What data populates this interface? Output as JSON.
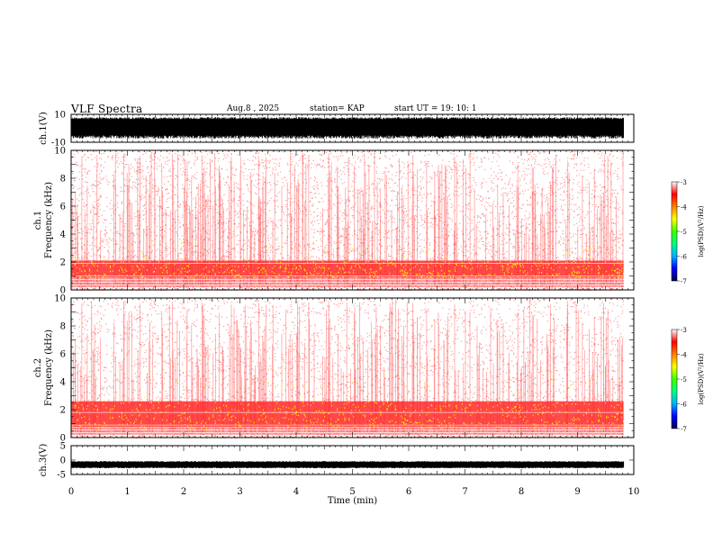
{
  "header": {
    "title": "VLF Spectra",
    "date": "Aug.8  , 2025",
    "station": "station= KAP",
    "start": "start  UT  =   19: 10: 1"
  },
  "colors": {
    "axis": "#000000",
    "spec_low": "#ffffff",
    "spec_mid": "#ff2a2a",
    "spec_high": "#ffff00",
    "colorbar": [
      "#000050",
      "#0000ff",
      "#00b0ff",
      "#00ff80",
      "#40ff00",
      "#ffff00",
      "#ff8000",
      "#ff0000",
      "#ffffff"
    ]
  },
  "chart_data": [
    {
      "id": "ch1-waveform",
      "type": "line",
      "ylabel": "ch.1(V)",
      "ylim": [
        -10,
        10
      ],
      "yticks": [
        "10",
        "-10"
      ],
      "xlim": [
        0,
        10
      ],
      "description_values": "saturated dense oscillation filling roughly -7 to 8 V"
    },
    {
      "id": "ch1-spectrogram",
      "type": "heatmap",
      "ylabel": "ch.1\nFrequency  (kHz)",
      "ylim": [
        0,
        10
      ],
      "yticks": [
        "0",
        "2",
        "4",
        "6",
        "8",
        "10"
      ],
      "xlim": [
        0,
        10
      ],
      "bright_band_khz": [
        0.9,
        2.1
      ],
      "colorbar": {
        "label": "log(PSD)(V²/Hz)",
        "range": [
          -7,
          -3
        ],
        "ticks": [
          "-3",
          "-4",
          "-5",
          "-6",
          "-7"
        ]
      }
    },
    {
      "id": "ch2-spectrogram",
      "type": "heatmap",
      "ylabel": "ch.2\nFrequency  (kHz)",
      "ylim": [
        0,
        10
      ],
      "yticks": [
        "0",
        "2",
        "4",
        "6",
        "8",
        "10"
      ],
      "xlim": [
        0,
        10
      ],
      "bright_band_khz": [
        0.7,
        2.6
      ],
      "colorbar": {
        "label": "log(PSD)(V²/Hz)",
        "range": [
          -7,
          -3
        ],
        "ticks": [
          "-3",
          "-4",
          "-5",
          "-6",
          "-7"
        ]
      }
    },
    {
      "id": "ch3-waveform",
      "type": "line",
      "ylabel": "ch.3(V)",
      "ylim": [
        -5,
        5
      ],
      "yticks": [
        "5",
        "0",
        "-5"
      ],
      "xlim": [
        0,
        10
      ],
      "level": -1.6
    },
    {
      "id": "time-axis",
      "xlabel": "Time  (min)",
      "xlim": [
        0,
        10
      ],
      "xticks": [
        "0",
        "1",
        "2",
        "3",
        "4",
        "5",
        "6",
        "7",
        "8",
        "9",
        "10"
      ],
      "data_end_min": 9.82
    }
  ]
}
